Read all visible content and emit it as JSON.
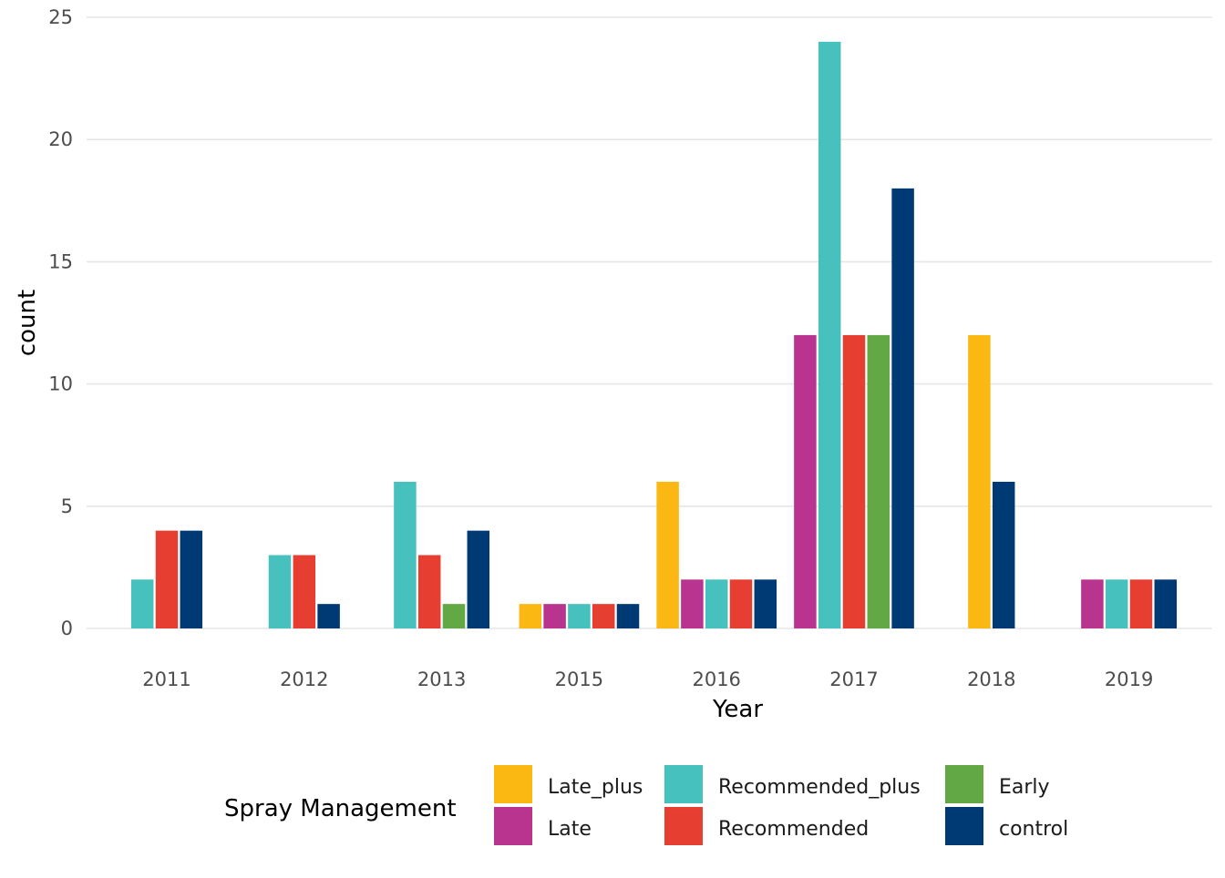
{
  "chart_data": {
    "type": "bar",
    "title": "",
    "xlabel": "Year",
    "ylabel": "count",
    "ylim": [
      0,
      25
    ],
    "yticks": [
      0,
      5,
      10,
      15,
      20,
      25
    ],
    "grid": true,
    "legend_position": "bottom",
    "legend_title": "Spray Management",
    "categories": [
      "2011",
      "2012",
      "2013",
      "2015",
      "2016",
      "2017",
      "2018",
      "2019"
    ],
    "series": [
      {
        "name": "Late_plus",
        "color": "#FBB812",
        "values": [
          null,
          null,
          null,
          1,
          6,
          null,
          12,
          null
        ]
      },
      {
        "name": "Late",
        "color": "#B8348F",
        "values": [
          null,
          null,
          null,
          1,
          2,
          12,
          null,
          2
        ]
      },
      {
        "name": "Recommended_plus",
        "color": "#46C1BE",
        "values": [
          2,
          3,
          6,
          1,
          2,
          24,
          null,
          2
        ]
      },
      {
        "name": "Recommended",
        "color": "#E63E31",
        "values": [
          4,
          3,
          3,
          1,
          2,
          12,
          null,
          2
        ]
      },
      {
        "name": "Early",
        "color": "#62A844",
        "values": [
          null,
          null,
          1,
          null,
          null,
          12,
          null,
          null
        ]
      },
      {
        "name": "control",
        "color": "#003A75",
        "values": [
          4,
          1,
          4,
          1,
          2,
          18,
          6,
          2
        ]
      }
    ]
  }
}
